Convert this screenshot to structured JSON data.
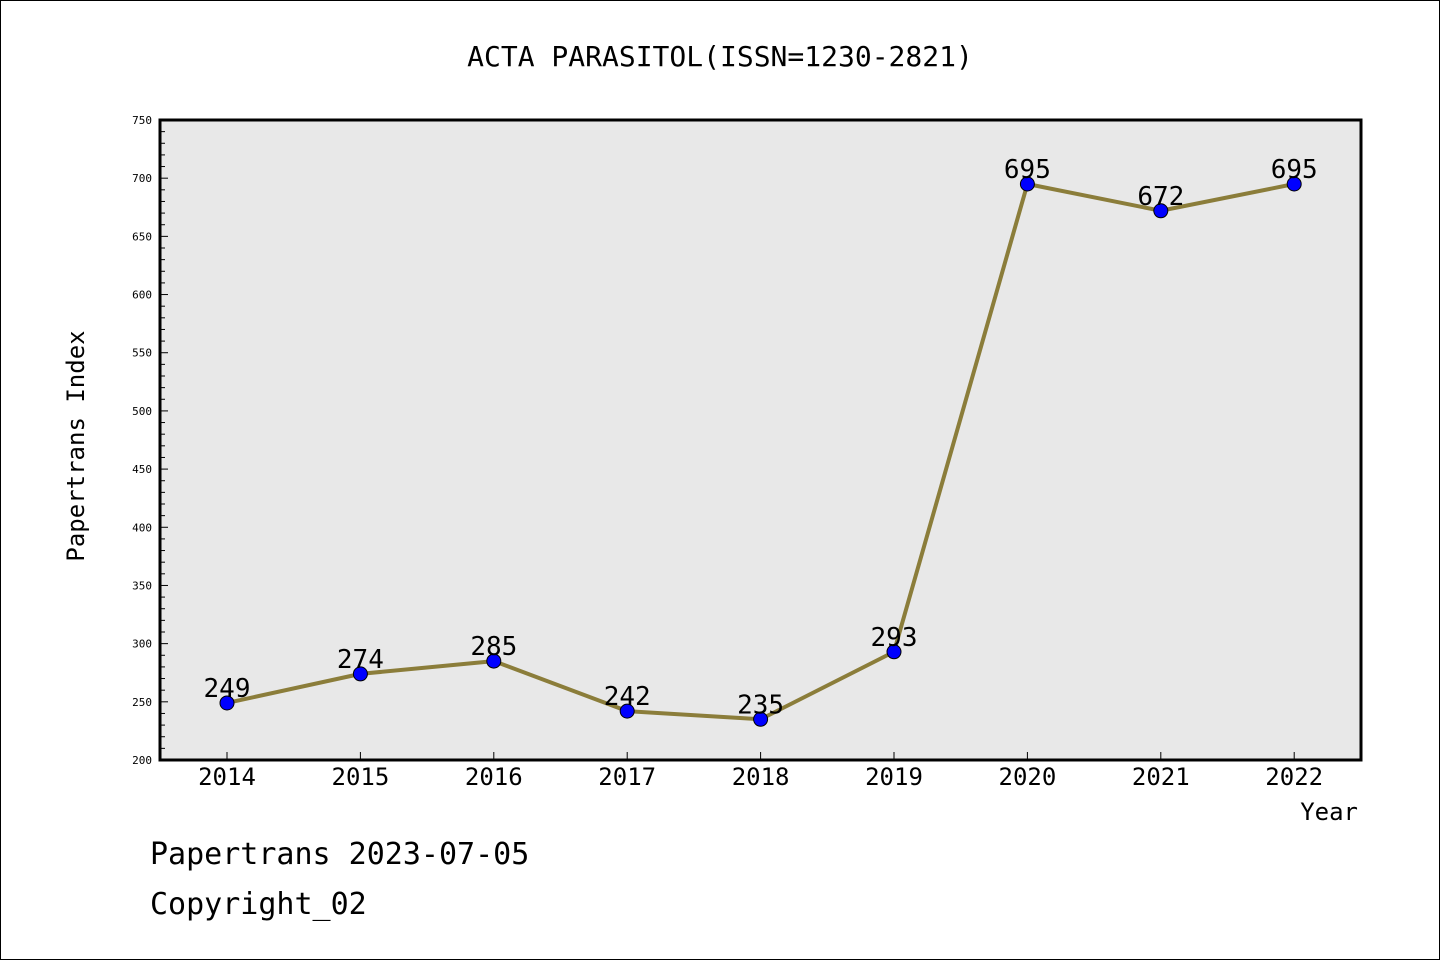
{
  "chart_data": {
    "type": "line",
    "title": "ACTA PARASITOL(ISSN=1230-2821)",
    "xlabel": "Year",
    "ylabel": "Papertrans Index",
    "categories": [
      "2014",
      "2015",
      "2016",
      "2017",
      "2018",
      "2019",
      "2020",
      "2021",
      "2022"
    ],
    "values": [
      249,
      274,
      285,
      242,
      235,
      293,
      695,
      672,
      695
    ],
    "ylim": [
      200,
      750
    ],
    "yticks": [
      200,
      250,
      300,
      350,
      400,
      450,
      500,
      550,
      600,
      650,
      700,
      750
    ],
    "grid": false,
    "line_color": "#8b7d3a",
    "marker_color": "#0000ff",
    "plot_background": "#e8e8e8"
  },
  "footer": {
    "line1": "Papertrans 2023-07-05",
    "line2": "Copyright_02"
  }
}
